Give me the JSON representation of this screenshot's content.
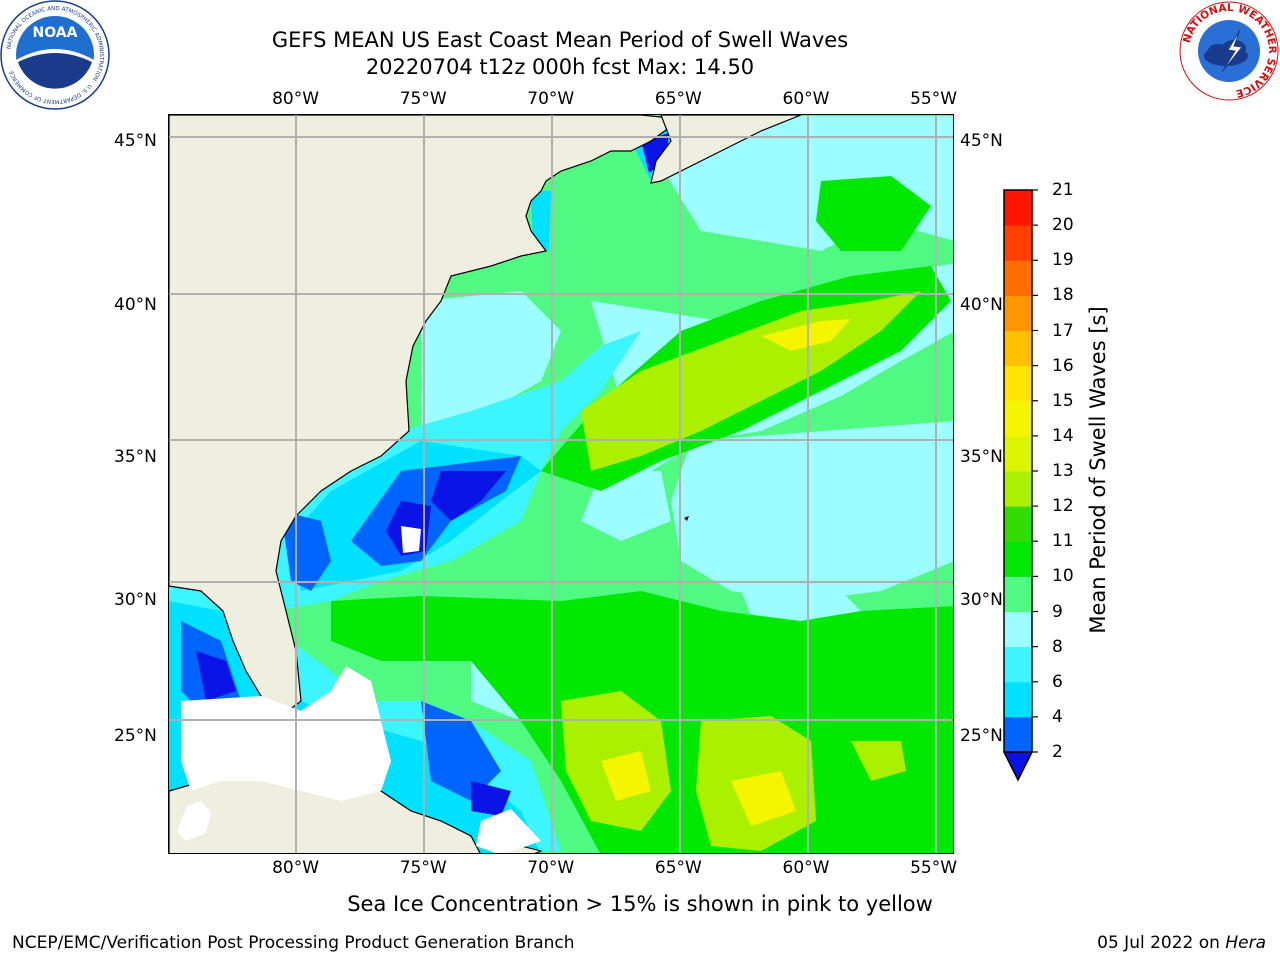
{
  "title": {
    "line1": "GEFS MEAN US East Coast Mean Period of Swell Waves",
    "line2": "20220704 t12z 000h fcst   Max: 14.50"
  },
  "axes": {
    "longitudes": [
      "80°W",
      "75°W",
      "70°W",
      "65°W",
      "60°W",
      "55°W"
    ],
    "latitudes": [
      "45°N",
      "40°N",
      "35°N",
      "30°N",
      "25°N"
    ],
    "lon_values": [
      -80,
      -75,
      -70,
      -65,
      -60,
      -55
    ],
    "lat_values": [
      45,
      40,
      35,
      30,
      25
    ],
    "lon_range": [
      -85,
      -54.2
    ],
    "lat_range": [
      20.5,
      45.8
    ]
  },
  "colorbar": {
    "label": "Mean Period of Swell Waves [s]",
    "ticks": [
      "21",
      "20",
      "19",
      "18",
      "17",
      "16",
      "15",
      "14",
      "13",
      "12",
      "11",
      "10",
      "9",
      "8",
      "6",
      "4",
      "2"
    ],
    "bins": [
      {
        "from": 2,
        "to": 4,
        "color": "#0064ff"
      },
      {
        "from": 4,
        "to": 6,
        "color": "#00e1ff"
      },
      {
        "from": 6,
        "to": 8,
        "color": "#3cf5ff"
      },
      {
        "from": 8,
        "to": 9,
        "color": "#9cfcff"
      },
      {
        "from": 9,
        "to": 10,
        "color": "#50fa82"
      },
      {
        "from": 10,
        "to": 11,
        "color": "#00e800"
      },
      {
        "from": 11,
        "to": 12,
        "color": "#32dc00"
      },
      {
        "from": 12,
        "to": 13,
        "color": "#aaf000"
      },
      {
        "from": 13,
        "to": 14,
        "color": "#dcf500"
      },
      {
        "from": 14,
        "to": 15,
        "color": "#f5f500"
      },
      {
        "from": 15,
        "to": 16,
        "color": "#ffe600"
      },
      {
        "from": 16,
        "to": 17,
        "color": "#ffc000"
      },
      {
        "from": 17,
        "to": 18,
        "color": "#ff9600"
      },
      {
        "from": 18,
        "to": 19,
        "color": "#ff6e00"
      },
      {
        "from": 19,
        "to": 20,
        "color": "#ff4000"
      },
      {
        "from": 20,
        "to": 21,
        "color": "#ff1400"
      }
    ],
    "underflow_color": "#0a14e6"
  },
  "colors": {
    "land": "#efefdf",
    "grid": "#b0b0b0",
    "no_data": "#ffffff"
  },
  "footnote": "Sea Ice Concentration > 15% is shown in pink to yellow",
  "credit": {
    "left": "NCEP/EMC/Verification Post Processing Product Generation Branch",
    "right_date": "05 Jul 2022 on",
    "right_host": "Hera"
  },
  "logos": {
    "noaa_text": "NOAA",
    "noaa_ring": "NATIONAL OCEANIC AND ATMOSPHERIC ADMINISTRATION · U.S. DEPARTMENT OF COMMERCE ·",
    "nws_ring": "NATIONAL WEATHER SERVICE"
  }
}
